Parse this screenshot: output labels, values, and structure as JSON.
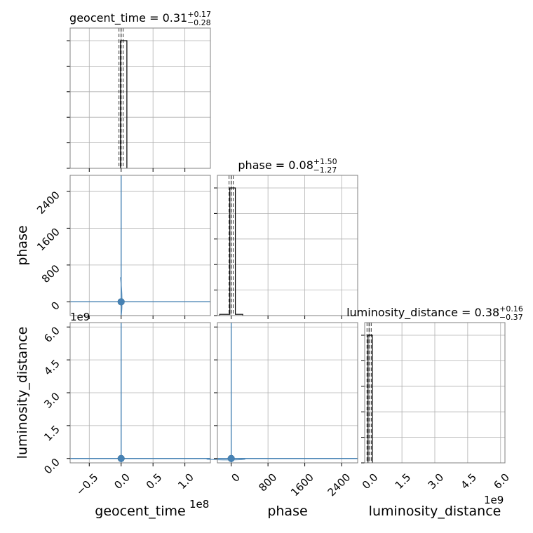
{
  "chart_data": {
    "type": "corner",
    "grid": true,
    "colors": {
      "contour": "#4682b4",
      "hist": "#000000",
      "grid": "#b0b0b0",
      "frame": "#808080"
    },
    "parameters": [
      {
        "name": "geocent_time",
        "xlabel": "geocent_time",
        "range": [
          -80000000.0,
          140000000.0
        ],
        "ticks": [
          -50000000.0,
          0,
          50000000.0,
          100000000.0
        ],
        "tick_labels": [
          "−0.5",
          "0.0",
          "0.5",
          "1.0"
        ],
        "offset_text": "1e8",
        "title_name": "geocent_time",
        "title_value": "0.31",
        "title_plus": "+0.17",
        "title_minus": "−0.28",
        "median": 0,
        "hist_bins": [
          {
            "x0": -1000000.0,
            "x1": 9000000.0,
            "h": 1.0
          }
        ]
      },
      {
        "name": "phase",
        "xlabel": "phase",
        "ylabel": "phase",
        "range": [
          -300,
          2750
        ],
        "ticks": [
          0,
          800,
          1600,
          2400
        ],
        "tick_labels": [
          "0",
          "800",
          "1600",
          "2400"
        ],
        "title_name": "phase",
        "title_value": "0.08",
        "title_plus": "+1.50",
        "title_minus": "−1.27",
        "median": 0,
        "hist_bins": [
          {
            "x0": -250,
            "x1": -30,
            "h": 0.01
          },
          {
            "x0": -30,
            "x1": 90,
            "h": 1.0
          },
          {
            "x0": 90,
            "x1": 250,
            "h": 0.01
          }
        ]
      },
      {
        "name": "luminosity_distance",
        "xlabel": "luminosity_distance",
        "ylabel": "luminosity_distance",
        "range": [
          -200000000.0,
          6200000000.0
        ],
        "ticks": [
          0,
          1500000000.0,
          3000000000.0,
          4500000000.0,
          6000000000.0
        ],
        "tick_labels": [
          "0.0",
          "1.5",
          "3.0",
          "4.5",
          "6.0"
        ],
        "offset_text": "1e9",
        "title_name": "luminosity_distance",
        "title_value": "0.38",
        "title_plus": "+0.16",
        "title_minus": "−0.37",
        "median": 0,
        "hist_bins": [
          {
            "x0": -50000000.0,
            "x1": 150000000.0,
            "h": 1.0
          }
        ]
      }
    ]
  }
}
